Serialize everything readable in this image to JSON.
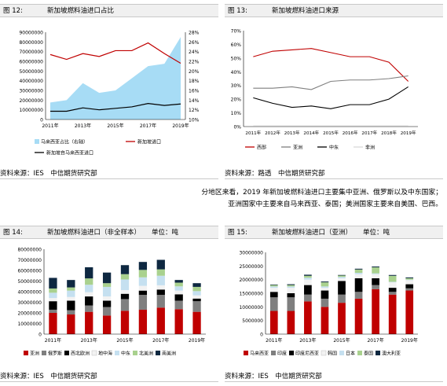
{
  "figures": {
    "f12": {
      "label": "图 12:",
      "title": "新加坡燃料油进口占比",
      "source": "资料来源：IES　中信期货研究部"
    },
    "f13": {
      "label": "图 13:",
      "title": "新加坡燃料油进口来源",
      "source": "资料来源：路透　中信期货研究部"
    },
    "f14": {
      "label": "图 14:",
      "title": "新加坡燃料油进口（非全样本）",
      "unit": "单位：吨",
      "source": "资料来源：IES　中信期货研究部"
    },
    "f15": {
      "label": "图 15:",
      "title": "新加坡燃料油进口（亚洲）",
      "unit": "单位：吨",
      "source": "资料来源：IES　中信期货研究部"
    }
  },
  "paragraph": {
    "line1": "分地区来看，2019 年新加坡燃料油进口主要集中亚洲、俄罗斯以及中东国家；",
    "line2": "亚洲国家中主要来自马来西亚、泰国；美洲国家主要来自美国、巴西。"
  },
  "chart_data": [
    {
      "id": "fig12",
      "type": "area+line",
      "x": [
        2011,
        2012,
        2013,
        2014,
        2015,
        2016,
        2017,
        2018,
        2019
      ],
      "xticks": [
        "2011年",
        "2013年",
        "2015年",
        "2017年",
        "2019年"
      ],
      "ylim": [
        0,
        90000000
      ],
      "yticks": [
        "0",
        "10000000",
        "20000000",
        "30000000",
        "40000000",
        "50000000",
        "60000000",
        "70000000",
        "80000000",
        "90000000"
      ],
      "y2lim": [
        10,
        28
      ],
      "y2ticks": [
        "10%",
        "12%",
        "14%",
        "16%",
        "18%",
        "20%",
        "22%",
        "24%",
        "26%",
        "28%"
      ],
      "series": [
        {
          "name": "马来西亚占比（右轴）",
          "axis": "right",
          "kind": "area",
          "color": "#a7dcf5",
          "values": [
            13.5,
            14.0,
            17.5,
            15.5,
            16.0,
            18.5,
            21.0,
            21.5,
            27.0
          ]
        },
        {
          "name": "新加坡进口",
          "axis": "left",
          "kind": "line",
          "color": "#c00000",
          "values": [
            67000000,
            62000000,
            68000000,
            65000000,
            71000000,
            71000000,
            79000000,
            68000000,
            58000000
          ]
        },
        {
          "name": "新加坡自马来西亚进口",
          "axis": "left",
          "kind": "line",
          "color": "#000000",
          "values": [
            8500000,
            8500000,
            12000000,
            10000000,
            11500000,
            13000000,
            16500000,
            14500000,
            16000000
          ]
        }
      ]
    },
    {
      "id": "fig13",
      "type": "line",
      "x": [
        "2011年",
        "2012年",
        "2013年",
        "2014年",
        "2015年",
        "2016年",
        "2017年",
        "2018年",
        "2019年"
      ],
      "ylim": [
        0,
        70
      ],
      "yticks": [
        "0%",
        "10%",
        "20%",
        "30%",
        "40%",
        "50%",
        "60%",
        "70%"
      ],
      "series": [
        {
          "name": "西部",
          "color": "#c00000",
          "values": [
            51,
            55,
            56,
            57,
            54,
            51,
            51,
            47,
            33
          ]
        },
        {
          "name": "亚洲",
          "color": "#7f7f7f",
          "values": [
            28,
            28,
            29,
            27,
            33,
            34,
            34,
            35,
            37
          ]
        },
        {
          "name": "中东",
          "color": "#000000",
          "values": [
            21,
            17,
            14,
            15,
            13,
            16,
            16,
            20,
            29
          ]
        },
        {
          "name": "非洲",
          "color": "#d9d9d9",
          "values": [
            0.5,
            0.5,
            0.5,
            0.5,
            0.5,
            0.5,
            0.5,
            0.5,
            0.5
          ]
        }
      ]
    },
    {
      "id": "fig14",
      "type": "stacked-bar",
      "categories": [
        "2011年",
        "2012年",
        "2013年",
        "2014年",
        "2015年",
        "2016年",
        "2017年",
        "2018年",
        "2019年"
      ],
      "xticks": [
        "2011年",
        "2013年",
        "2015年",
        "2017年",
        "2019年"
      ],
      "ylim": [
        0,
        80000000
      ],
      "yticks": [
        "0",
        "10000000",
        "20000000",
        "30000000",
        "40000000",
        "50000000",
        "60000000",
        "70000000",
        "80000000"
      ],
      "series": [
        {
          "name": "亚洲",
          "color": "#c00000",
          "values": [
            20000000,
            18500000,
            21000000,
            17500000,
            22000000,
            23000000,
            25000000,
            23500000,
            21000000
          ]
        },
        {
          "name": "俄罗斯",
          "color": "#7f7f7f",
          "values": [
            3000000,
            4000000,
            6000000,
            8000000,
            11000000,
            14000000,
            12000000,
            8000000,
            10000000
          ]
        },
        {
          "name": "西北欧洲",
          "color": "#000000",
          "values": [
            8000000,
            9000000,
            8500000,
            6000000,
            5000000,
            4000000,
            5000000,
            6000000,
            2500000
          ]
        },
        {
          "name": "地中海",
          "color": "#f2f2f2",
          "values": [
            3000000,
            3500000,
            4000000,
            4000000,
            3500000,
            4500000,
            4000000,
            3500000,
            3000000
          ]
        },
        {
          "name": "中东",
          "color": "#c5e0f0",
          "values": [
            5000000,
            6000000,
            7000000,
            9000000,
            10000000,
            8000000,
            9000000,
            4000000,
            4000000
          ]
        },
        {
          "name": "北美洲",
          "color": "#a9d18e",
          "values": [
            4000000,
            3000000,
            6000000,
            3500000,
            5000000,
            7000000,
            6000000,
            3500000,
            4000000
          ]
        },
        {
          "name": "南美洲",
          "color": "#0e2841",
          "values": [
            10000000,
            7000000,
            10500000,
            10000000,
            8500000,
            7500000,
            9000000,
            2500000,
            3500000
          ]
        }
      ]
    },
    {
      "id": "fig15",
      "type": "stacked-bar",
      "categories": [
        "2011年",
        "2012年",
        "2013年",
        "2014年",
        "2015年",
        "2016年",
        "2017年",
        "2018年",
        "2019年"
      ],
      "xticks": [
        "2011年",
        "2013年",
        "2015年",
        "2017年",
        "2019年"
      ],
      "ylim": [
        0,
        30000000
      ],
      "yticks": [
        "0",
        "5000000",
        "10000000",
        "15000000",
        "20000000",
        "25000000",
        "30000000"
      ],
      "series": [
        {
          "name": "马来西亚",
          "color": "#c00000",
          "values": [
            8500000,
            8500000,
            12000000,
            10000000,
            11500000,
            13000000,
            16500000,
            14500000,
            16000000
          ]
        },
        {
          "name": "印度",
          "color": "#7f7f7f",
          "values": [
            5000000,
            5000000,
            2500000,
            3000000,
            3000000,
            2500000,
            1500000,
            1000000,
            800000
          ]
        },
        {
          "name": "印度尼西亚",
          "color": "#000000",
          "values": [
            2000000,
            1500000,
            3500000,
            3000000,
            5000000,
            5000000,
            2500000,
            1500000,
            1500000
          ]
        },
        {
          "name": "韩国",
          "color": "#f2f2f2",
          "values": [
            1500000,
            2000000,
            2000000,
            1000000,
            1000000,
            1500000,
            1500000,
            2000000,
            1500000
          ]
        },
        {
          "name": "日本",
          "color": "#c5e0f0",
          "values": [
            500000,
            500000,
            700000,
            500000,
            500000,
            500000,
            300000,
            200000,
            200000
          ]
        },
        {
          "name": "泰国",
          "color": "#a9d18e",
          "values": [
            500000,
            500000,
            700000,
            1500000,
            500000,
            1200000,
            2200000,
            2200000,
            500000
          ]
        },
        {
          "name": "澳大利亚",
          "color": "#0e2841",
          "values": [
            200000,
            300000,
            400000,
            300000,
            200000,
            300000,
            300000,
            300000,
            300000
          ]
        }
      ]
    }
  ]
}
